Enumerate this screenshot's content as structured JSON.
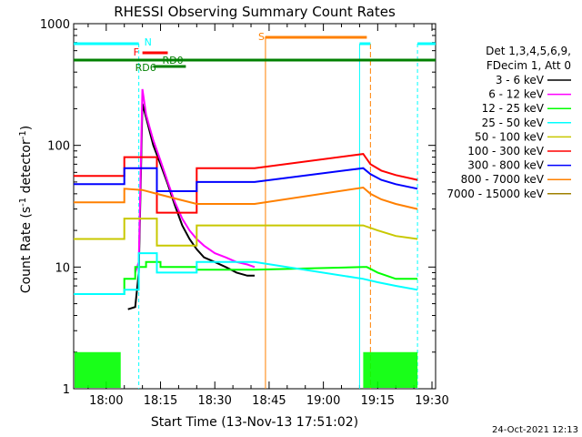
{
  "chart_data": {
    "type": "line",
    "title": "RHESSI Observing Summary Count Rates",
    "xlabel": "Start Time (13-Nov-13 17:51:02)",
    "ylabel": "Count Rate (s⁻¹ detector⁻¹)",
    "ylabel_parts": {
      "main": "Count Rate (s",
      "sup1": "-1",
      "mid": " detector",
      "sup2": "-1",
      "end": ")"
    },
    "yscale": "log",
    "ylim": [
      1,
      1000
    ],
    "xlim": [
      "17:51",
      "19:31"
    ],
    "x_ticks": [
      "18:00",
      "18:15",
      "18:30",
      "18:45",
      "19:00",
      "19:15",
      "19:30"
    ],
    "y_ticks": [
      {
        "value": 1,
        "label": "1"
      },
      {
        "value": 10,
        "label": "10"
      },
      {
        "value": 100,
        "label": "100"
      },
      {
        "value": 1000,
        "label": "1000"
      }
    ],
    "legend_header": [
      "Det 1,3,4,5,6,9,",
      "FDecim 1, Att 0"
    ],
    "timestamp": "24-Oct-2021 12:13",
    "series": [
      {
        "name": "3 - 6 keV",
        "color": "#000000",
        "points": [
          [
            "18:06",
            4.5
          ],
          [
            "18:08",
            4.7
          ],
          [
            "18:09",
            9
          ],
          [
            "18:10",
            220
          ],
          [
            "18:11",
            170
          ],
          [
            "18:12",
            130
          ],
          [
            "18:13",
            100
          ],
          [
            "18:15",
            70
          ],
          [
            "18:17",
            48
          ],
          [
            "18:19",
            32
          ],
          [
            "18:21",
            22
          ],
          [
            "18:23",
            17
          ],
          [
            "18:25",
            14
          ],
          [
            "18:27",
            12
          ],
          [
            "18:30",
            11
          ],
          [
            "18:33",
            10
          ],
          [
            "18:36",
            9
          ],
          [
            "18:39",
            8.5
          ],
          [
            "18:41",
            8.5
          ]
        ]
      },
      {
        "name": "6 - 12 keV",
        "color": "#ff00ff",
        "points": [
          [
            "18:08",
            9
          ],
          [
            "18:09",
            11
          ],
          [
            "18:10",
            290
          ],
          [
            "18:11",
            180
          ],
          [
            "18:12",
            140
          ],
          [
            "18:13",
            110
          ],
          [
            "18:15",
            75
          ],
          [
            "18:17",
            50
          ],
          [
            "18:19",
            34
          ],
          [
            "18:21",
            25
          ],
          [
            "18:23",
            20
          ],
          [
            "18:25",
            17
          ],
          [
            "18:27",
            15
          ],
          [
            "18:30",
            13
          ],
          [
            "18:33",
            12
          ],
          [
            "18:36",
            11
          ],
          [
            "18:39",
            10.5
          ],
          [
            "18:41",
            10
          ]
        ]
      },
      {
        "name": "12 - 25 keV",
        "color": "#00ff00",
        "points": [
          [
            "17:51",
            6
          ],
          [
            "17:55",
            6
          ],
          [
            "18:00",
            6
          ],
          [
            "18:05",
            6
          ],
          [
            "18:05",
            8
          ],
          [
            "18:08",
            8
          ],
          [
            "18:08",
            10
          ],
          [
            "18:11",
            10
          ],
          [
            "18:11",
            11
          ],
          [
            "18:15",
            11
          ],
          [
            "18:15",
            10
          ],
          [
            "18:25",
            10
          ],
          [
            "18:25",
            9.5
          ],
          [
            "18:41",
            9.5
          ],
          [
            "19:11",
            10
          ],
          [
            "19:12",
            10
          ],
          [
            "19:15",
            9
          ],
          [
            "19:20",
            8
          ],
          [
            "19:26",
            8
          ]
        ]
      },
      {
        "name": "25 - 50 keV",
        "color": "#00ffff",
        "points": [
          [
            "17:51",
            6
          ],
          [
            "18:05",
            6
          ],
          [
            "18:05",
            6.5
          ],
          [
            "18:09",
            6.5
          ],
          [
            "18:09",
            13
          ],
          [
            "18:14",
            13
          ],
          [
            "18:14",
            9
          ],
          [
            "18:25",
            9
          ],
          [
            "18:25",
            11
          ],
          [
            "18:41",
            11
          ],
          [
            "19:11",
            8
          ],
          [
            "19:15",
            7.5
          ],
          [
            "19:20",
            7
          ],
          [
            "19:26",
            6.5
          ]
        ]
      },
      {
        "name": "50 - 100 keV",
        "color": "#c8c800",
        "points": [
          [
            "17:51",
            17
          ],
          [
            "18:05",
            17
          ],
          [
            "18:05",
            25
          ],
          [
            "18:14",
            25
          ],
          [
            "18:14",
            15
          ],
          [
            "18:25",
            15
          ],
          [
            "18:25",
            22
          ],
          [
            "18:41",
            22
          ],
          [
            "19:11",
            22
          ],
          [
            "19:15",
            20
          ],
          [
            "19:20",
            18
          ],
          [
            "19:26",
            17
          ]
        ]
      },
      {
        "name": "100 - 300 keV",
        "color": "#ff0000",
        "points": [
          [
            "17:51",
            56
          ],
          [
            "18:05",
            56
          ],
          [
            "18:05",
            80
          ],
          [
            "18:14",
            80
          ],
          [
            "18:14",
            28
          ],
          [
            "18:25",
            28
          ],
          [
            "18:25",
            65
          ],
          [
            "18:41",
            65
          ],
          [
            "19:11",
            85
          ],
          [
            "19:13",
            70
          ],
          [
            "19:16",
            62
          ],
          [
            "19:20",
            57
          ],
          [
            "19:26",
            52
          ]
        ]
      },
      {
        "name": "300 - 800 keV",
        "color": "#0000ff",
        "points": [
          [
            "17:51",
            48
          ],
          [
            "18:05",
            48
          ],
          [
            "18:05",
            65
          ],
          [
            "18:14",
            65
          ],
          [
            "18:14",
            42
          ],
          [
            "18:25",
            42
          ],
          [
            "18:25",
            50
          ],
          [
            "18:41",
            50
          ],
          [
            "19:11",
            65
          ],
          [
            "19:13",
            58
          ],
          [
            "19:16",
            52
          ],
          [
            "19:20",
            48
          ],
          [
            "19:26",
            44
          ]
        ]
      },
      {
        "name": "800 - 7000 keV",
        "color": "#ff8000",
        "points": [
          [
            "17:51",
            34
          ],
          [
            "18:05",
            34
          ],
          [
            "18:05",
            44
          ],
          [
            "18:10",
            43
          ],
          [
            "18:14",
            40
          ],
          [
            "18:20",
            36
          ],
          [
            "18:25",
            33
          ],
          [
            "18:25",
            33
          ],
          [
            "18:41",
            33
          ],
          [
            "19:11",
            45
          ],
          [
            "19:13",
            40
          ],
          [
            "19:16",
            36
          ],
          [
            "19:20",
            33
          ],
          [
            "19:26",
            30
          ]
        ]
      },
      {
        "name": "7000 - 15000 keV",
        "color": "#a08000",
        "points": []
      }
    ],
    "annotations": [
      {
        "label": "N",
        "color": "#00ffff"
      },
      {
        "label": "F",
        "color": "#ff0000"
      },
      {
        "label": "RD0",
        "color": "#008000"
      },
      {
        "label": "RD6",
        "color": "#008000"
      },
      {
        "label": "S",
        "color": "#ff8000"
      }
    ],
    "intervals": {
      "night": [
        [
          "17:51",
          "18:09"
        ],
        [
          "19:10",
          "19:13"
        ],
        [
          "19:26",
          "19:31"
        ]
      ],
      "flare": [
        "18:10",
        "18:17"
      ],
      "rd0": [
        "18:15",
        "18:24"
      ],
      "rd6": [
        "18:13",
        "18:22"
      ],
      "saa": [
        "18:44",
        "19:12"
      ],
      "decimation": [
        "17:51",
        "19:31"
      ]
    }
  }
}
